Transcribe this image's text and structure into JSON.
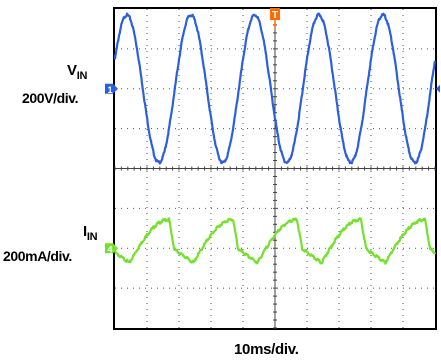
{
  "chart_data": {
    "type": "line",
    "title": "",
    "xlabel": "10ms/div.",
    "ylabel": "",
    "grid": true,
    "divisions": {
      "x": 10,
      "y": 8
    },
    "x_range_div": [
      0,
      10
    ],
    "y_range_div": [
      -4,
      4
    ],
    "series": [
      {
        "name": "VIN",
        "name_main": "V",
        "name_sub": "IN",
        "scale": "200V/div.",
        "color": "#2a5fe0",
        "offset_div": 2,
        "amplitude_div": 1.85,
        "period_div": 2,
        "phase_div": -0.13,
        "shape": "sine"
      },
      {
        "name": "IIN",
        "name_main": "I",
        "name_sub": "IN",
        "scale": "200mA/div.",
        "color": "#74e12e",
        "offset_div": -1.9,
        "amplitude_div": 0.62,
        "period_div": 2,
        "phase_div": 0.45,
        "shape": "rectified-hump"
      }
    ],
    "trigger_label": "T",
    "trigger_color": "#ff6a00",
    "ground_marker_1": "1",
    "ground_marker_4": "4"
  }
}
